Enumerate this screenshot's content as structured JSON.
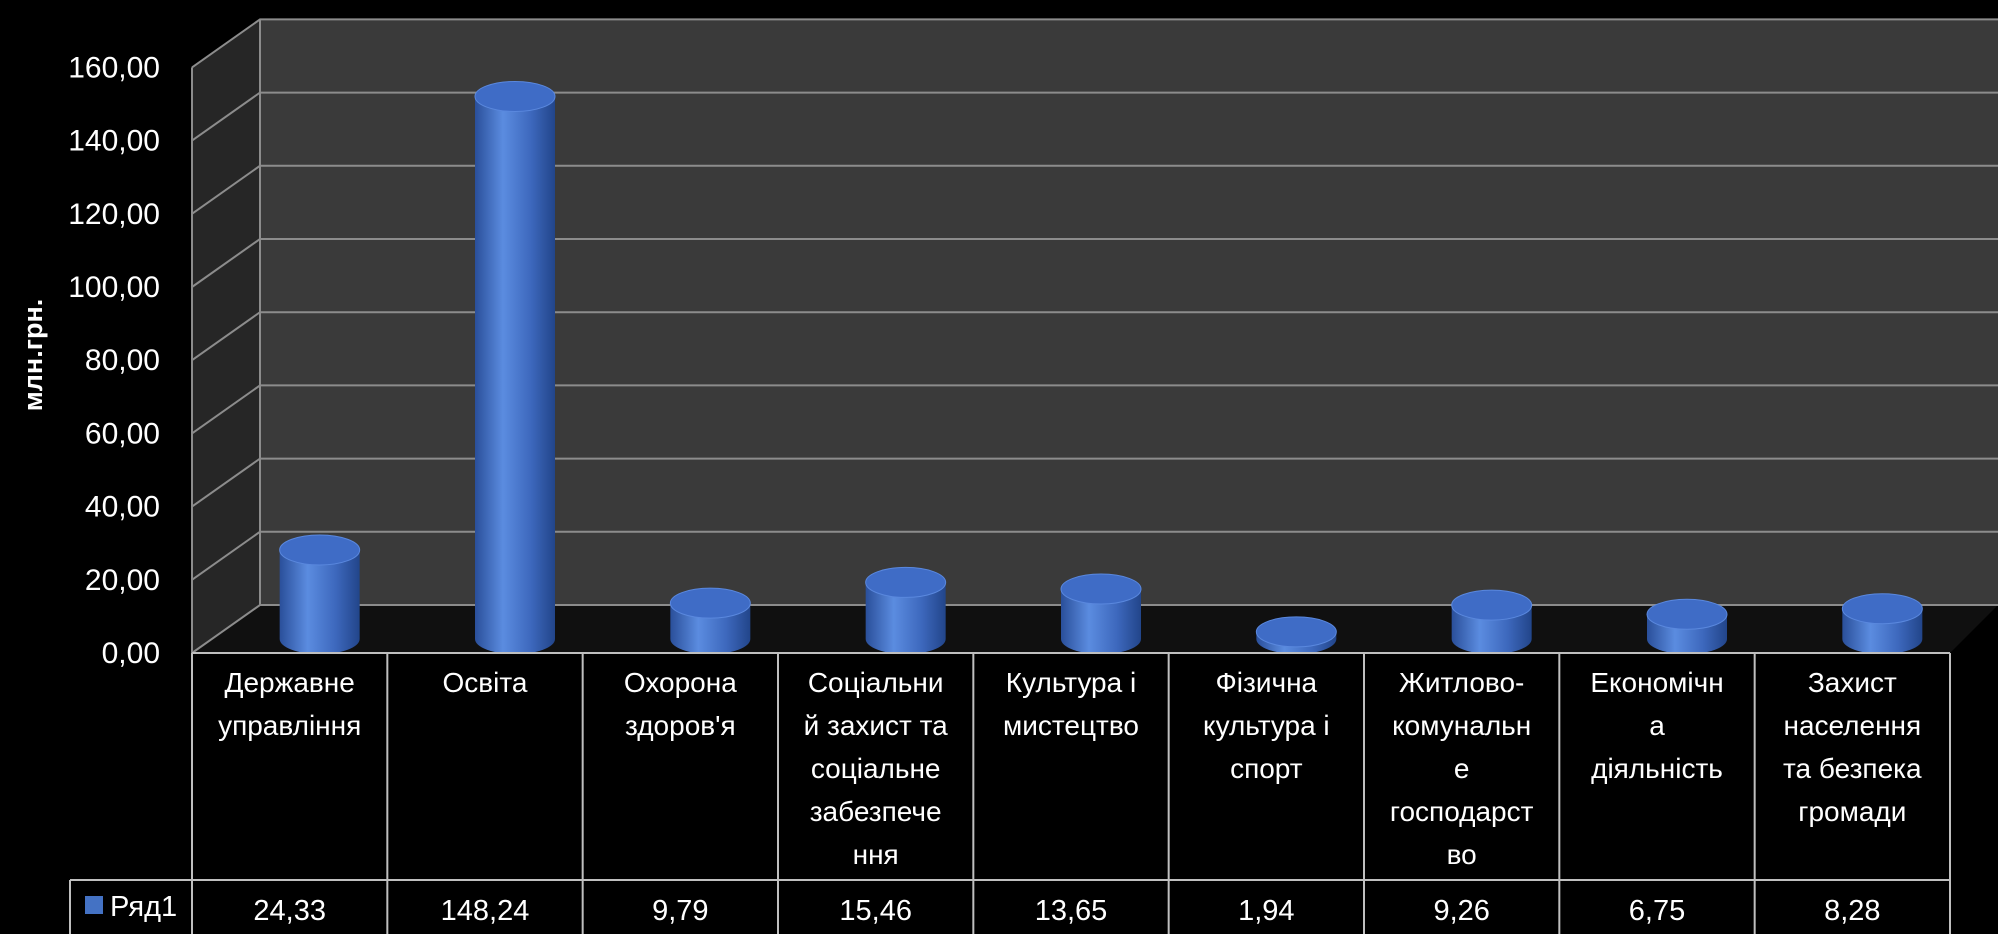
{
  "chart_data": {
    "type": "bar",
    "style": "3d-cylinder",
    "ylabel": "млн.грн.",
    "ylim": [
      0,
      160
    ],
    "yticks": [
      "0,00",
      "20,00",
      "40,00",
      "60,00",
      "80,00",
      "100,00",
      "120,00",
      "140,00",
      "160,00"
    ],
    "grid": true,
    "categories": [
      [
        "Державне",
        "управління"
      ],
      [
        "Освіта"
      ],
      [
        "Охорона",
        "здоров'я"
      ],
      [
        "Соціальни",
        "й захист та",
        "соціальне",
        "забезпече",
        "ння"
      ],
      [
        "Культура і",
        "мистецтво"
      ],
      [
        "Фізична",
        "культура і",
        "спорт"
      ],
      [
        "Житлово-",
        "комунальн",
        "е",
        "господарст",
        "во"
      ],
      [
        "Економічн",
        "а",
        "діяльність"
      ],
      [
        "Захист",
        "населення",
        "та безпека",
        "громади"
      ]
    ],
    "series": [
      {
        "name": "Ряд1",
        "values": [
          24.33,
          148.24,
          9.79,
          15.46,
          13.65,
          1.94,
          9.26,
          6.75,
          8.28
        ],
        "value_labels": [
          "24,33",
          "148,24",
          "9,79",
          "15,46",
          "13,65",
          "1,94",
          "9,26",
          "6,75",
          "8,28"
        ],
        "color": "#4472C4"
      }
    ],
    "legend": "data-table",
    "colors": {
      "background": "#000000",
      "back_wall": "#3a3a3a",
      "side_wall": "#262626",
      "floor": "#101010",
      "grid": "#8c8c8c",
      "text": "#ffffff",
      "table_border": "#bfbfbf"
    }
  }
}
